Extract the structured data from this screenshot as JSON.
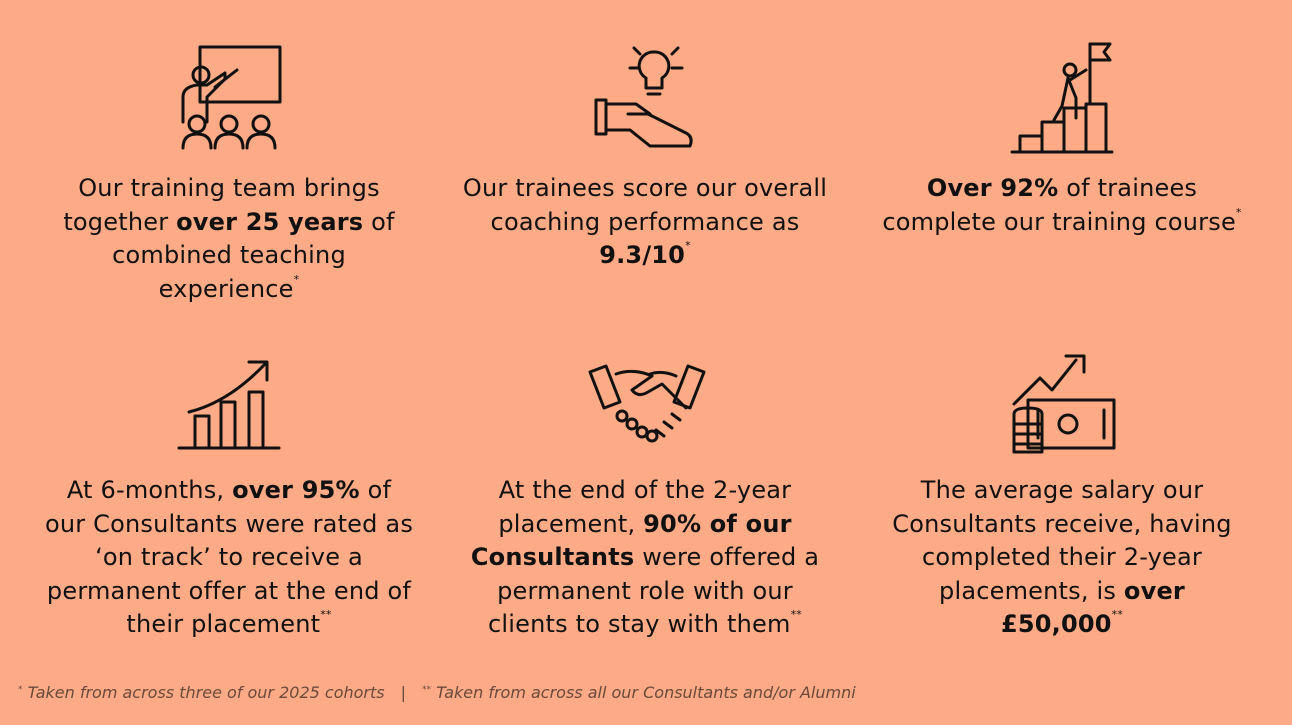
{
  "items": [
    {
      "parts": [
        {
          "text": "Our training team brings together ",
          "bold": false
        },
        {
          "text": "over 25 years",
          "bold": true
        },
        {
          "text": " of combined teaching experience",
          "bold": false
        }
      ],
      "note": "*"
    },
    {
      "parts": [
        {
          "text": "Our trainees score our overall coaching performance as ",
          "bold": false
        },
        {
          "text": "9.3/10",
          "bold": true
        }
      ],
      "note": "*"
    },
    {
      "parts": [
        {
          "text": "Over 92%",
          "bold": true
        },
        {
          "text": " of trainees complete our training course",
          "bold": false
        }
      ],
      "note": "*"
    },
    {
      "parts": [
        {
          "text": "At 6-months, ",
          "bold": false
        },
        {
          "text": "over 95%",
          "bold": true
        },
        {
          "text": " of our Consultants were rated as ‘on track’ to receive a permanent offer at the end of their placement",
          "bold": false
        }
      ],
      "note": "**"
    },
    {
      "parts": [
        {
          "text": "At the end of the 2-year placement, ",
          "bold": false
        },
        {
          "text": "90% of our Consultants",
          "bold": true
        },
        {
          "text": " were offered a permanent role with our clients to stay with them",
          "bold": false
        }
      ],
      "note": "**"
    },
    {
      "parts": [
        {
          "text": "The average salary our Consultants receive, having completed their 2-year placements, is ",
          "bold": false
        },
        {
          "text": "over £50,000",
          "bold": true
        }
      ],
      "note": "**"
    }
  ],
  "footer": {
    "notes": [
      {
        "mark": "*",
        "text": "Taken from across three of our 2025 cohorts"
      },
      {
        "mark": "**",
        "text": "Taken from across all our Consultants and/or Alumni"
      }
    ],
    "separator": "|"
  }
}
